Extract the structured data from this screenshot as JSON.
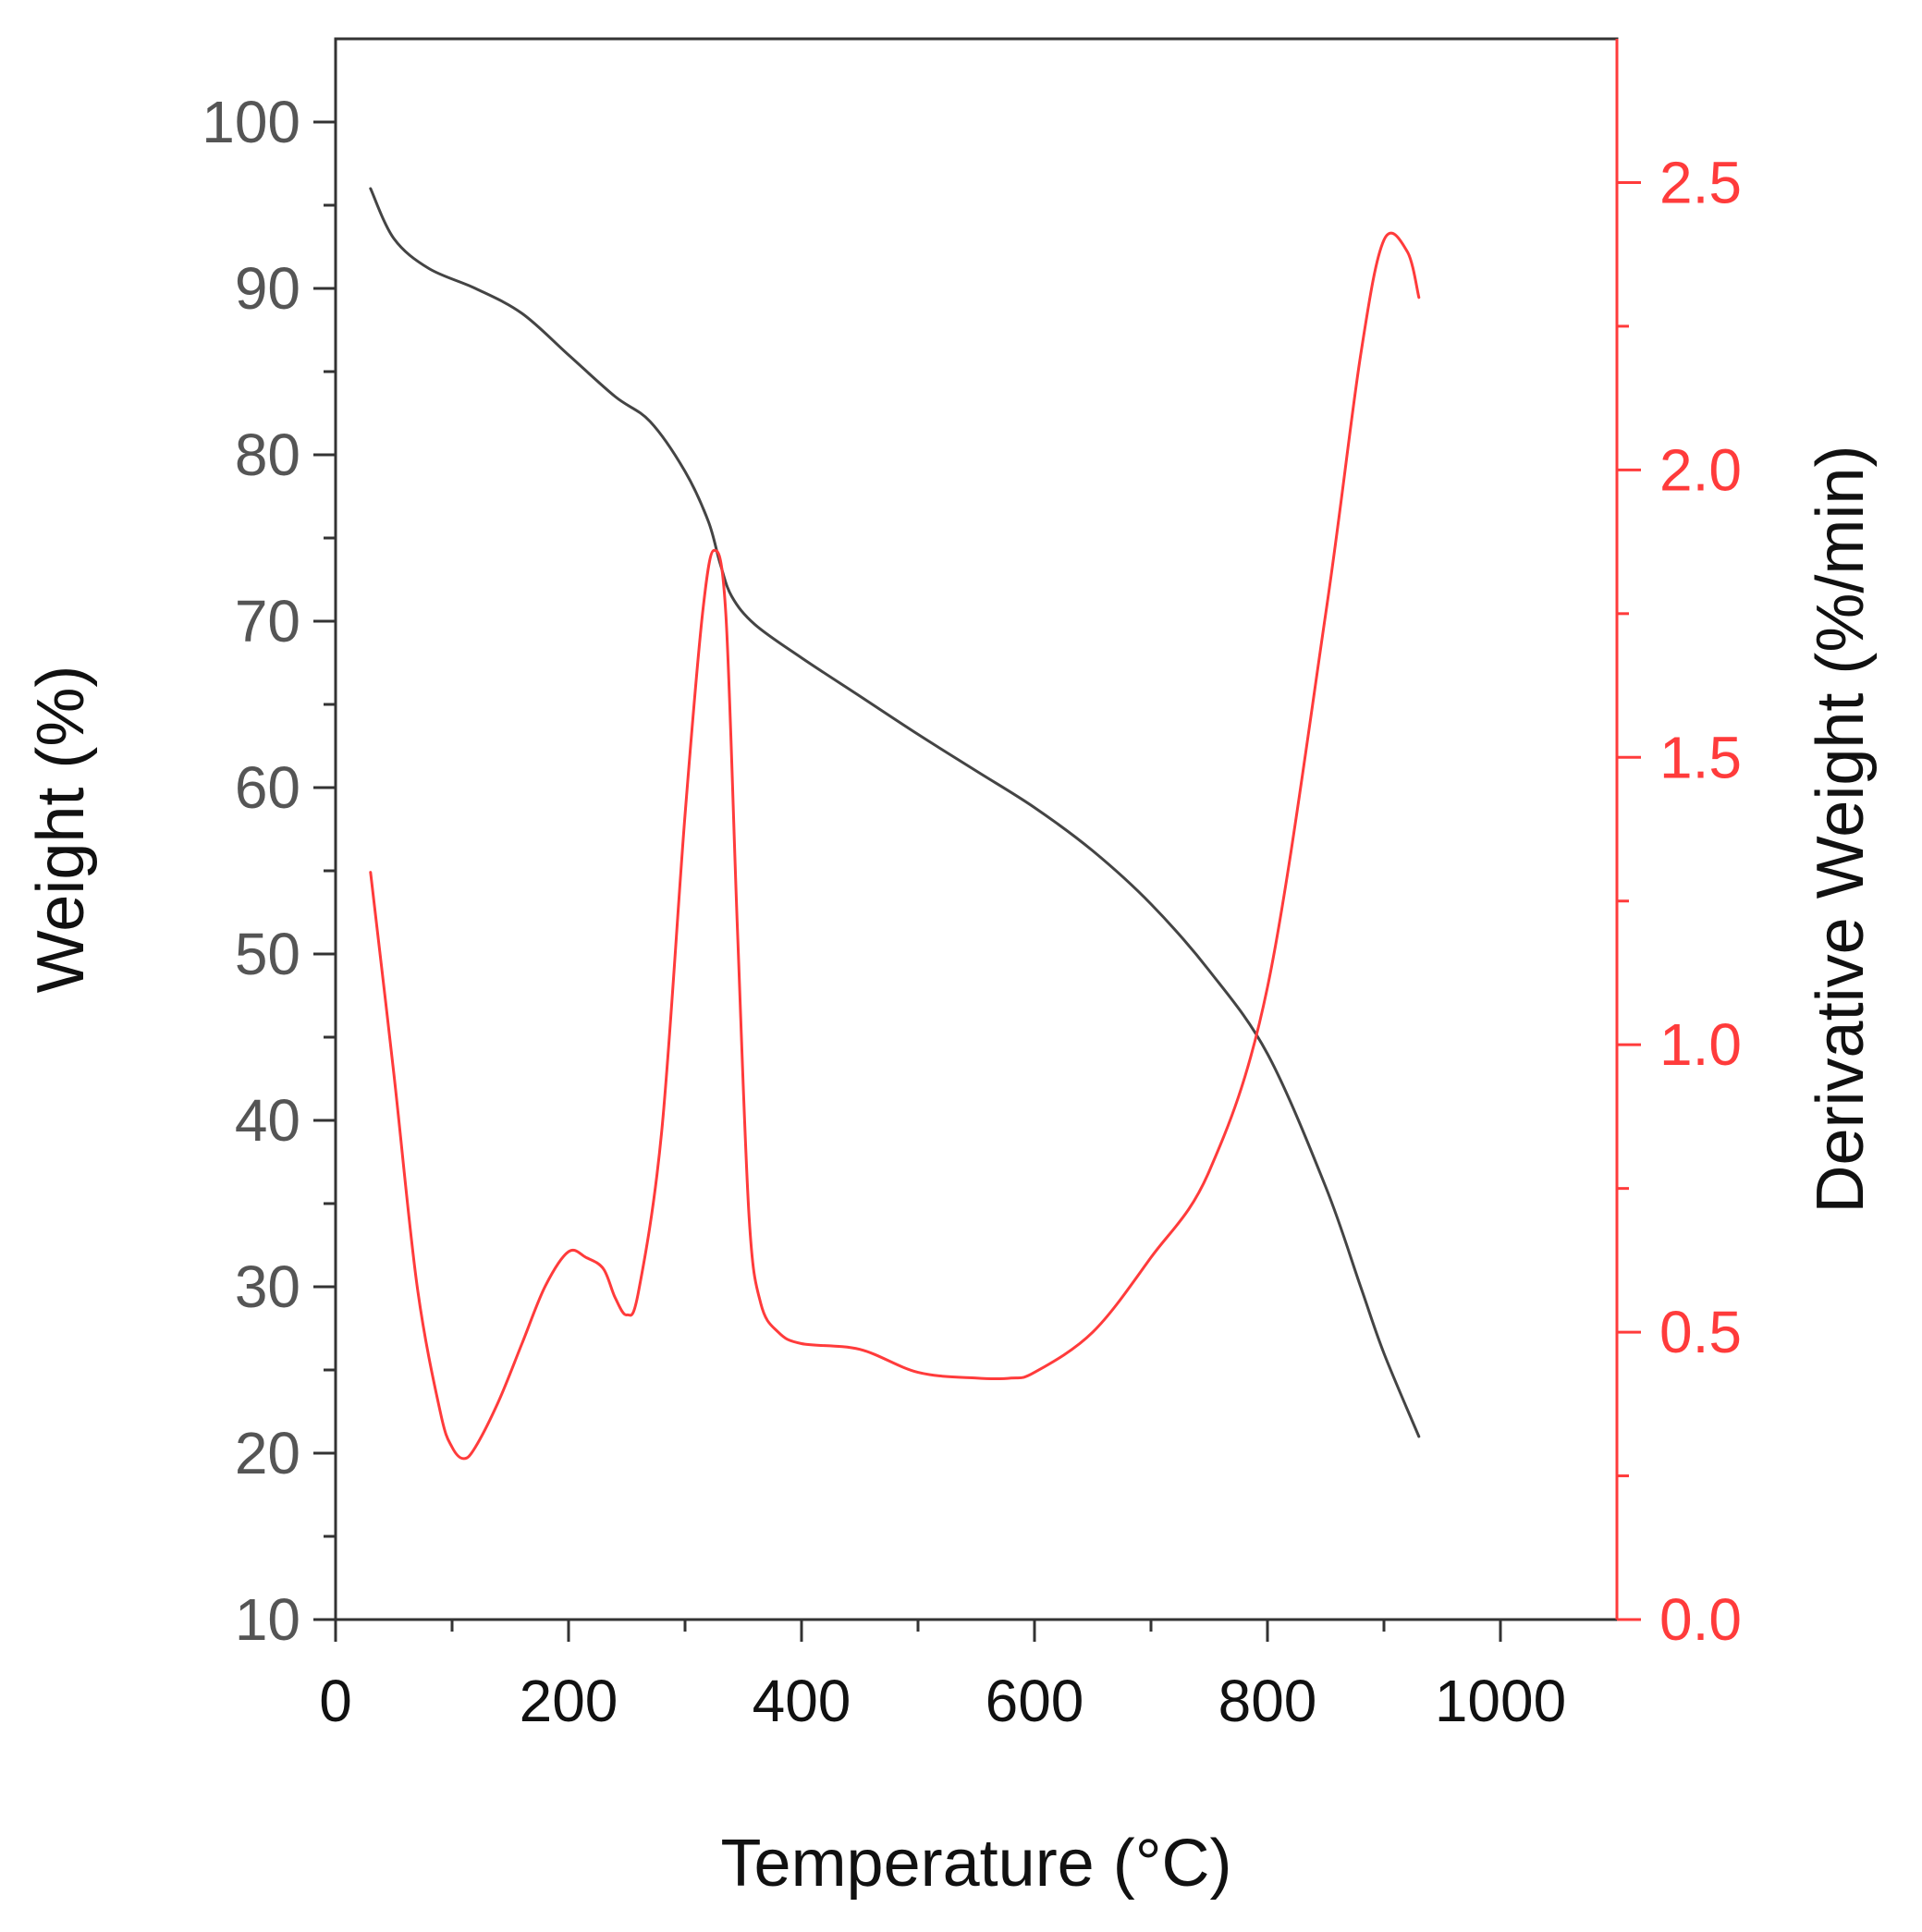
{
  "colors": {
    "frame": "#333333",
    "weight_line": "#444444",
    "derivative_line": "#ff3b3b",
    "left_tick_text": "#555555",
    "right_axis": "#ff3b3b"
  },
  "chart_data": {
    "type": "line",
    "title": "",
    "xlabel": "Temperature (°C)",
    "ylabel": "Weight (%)",
    "y2label": "Derivative Weight (%/min)",
    "xlim": [
      0,
      1100
    ],
    "ylim": [
      10,
      105
    ],
    "y2lim": [
      0,
      2.75
    ],
    "x_ticks": [
      0,
      200,
      400,
      600,
      800,
      1000
    ],
    "x_tick_labels": [
      "0",
      "200",
      "400",
      "600",
      "800",
      "1000"
    ],
    "y_ticks": [
      10,
      20,
      30,
      40,
      50,
      60,
      70,
      80,
      90,
      100
    ],
    "y_tick_labels": [
      "10",
      "20",
      "30",
      "40",
      "50",
      "60",
      "70",
      "80",
      "90",
      "100"
    ],
    "y2_ticks": [
      0,
      0.5,
      1.0,
      1.5,
      2.0,
      2.5
    ],
    "y2_tick_labels": [
      "0.0",
      "0.5",
      "1.0",
      "1.5",
      "2.0",
      "2.5"
    ],
    "grid": false,
    "series": [
      {
        "name": "Weight",
        "axis": "left",
        "x": [
          30,
          50,
          80,
          120,
          160,
          200,
          240,
          270,
          300,
          320,
          330,
          340,
          360,
          400,
          450,
          500,
          550,
          600,
          650,
          700,
          750,
          800,
          850,
          880,
          900,
          930
        ],
        "y": [
          96,
          93,
          91.2,
          90,
          88.5,
          86,
          83.5,
          82,
          79,
          76,
          73.5,
          71.5,
          69.8,
          67.8,
          65.5,
          63.2,
          61,
          58.8,
          56.2,
          53,
          49,
          44,
          36,
          30,
          26,
          21
        ]
      },
      {
        "name": "Derivative Weight",
        "axis": "right",
        "x": [
          30,
          50,
          70,
          90,
          100,
          110,
          120,
          140,
          160,
          180,
          200,
          215,
          230,
          240,
          250,
          260,
          280,
          300,
          315,
          325,
          335,
          345,
          355,
          365,
          380,
          400,
          450,
          500,
          550,
          580,
          600,
          650,
          700,
          750,
          800,
          850,
          880,
          900,
          920,
          930
        ],
        "y": [
          1.3,
          0.95,
          0.58,
          0.36,
          0.3,
          0.28,
          0.3,
          0.38,
          0.48,
          0.58,
          0.64,
          0.63,
          0.61,
          0.56,
          0.53,
          0.57,
          0.85,
          1.4,
          1.75,
          1.86,
          1.75,
          1.2,
          0.7,
          0.55,
          0.5,
          0.48,
          0.47,
          0.43,
          0.42,
          0.42,
          0.43,
          0.5,
          0.63,
          0.78,
          1.1,
          1.75,
          2.2,
          2.4,
          2.38,
          2.3
        ]
      }
    ]
  }
}
